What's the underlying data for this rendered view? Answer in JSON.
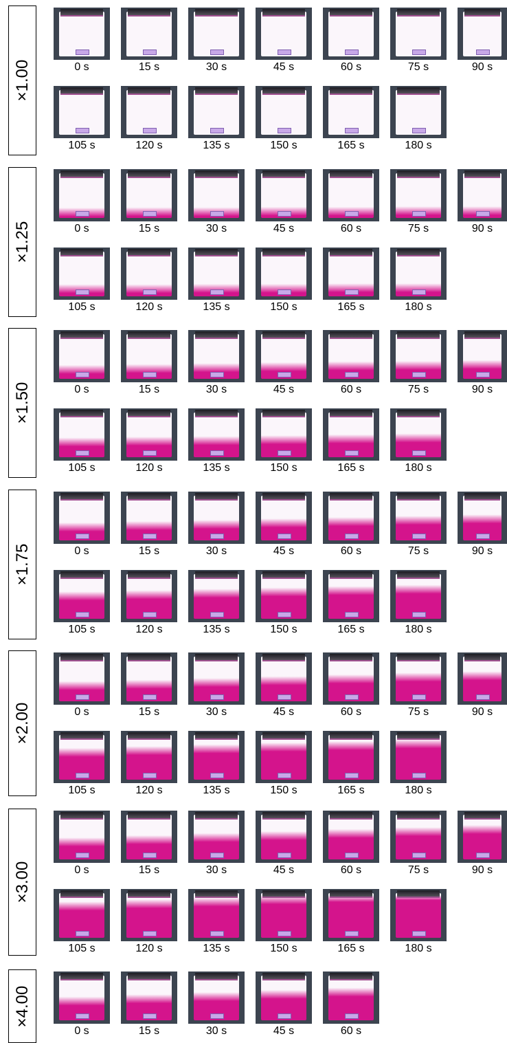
{
  "times": [
    "0 s",
    "15 s",
    "30 s",
    "45 s",
    "60 s",
    "75 s",
    "90 s",
    "105 s",
    "120 s",
    "135 s",
    "150 s",
    "165 s",
    "180 s"
  ],
  "groups": [
    {
      "label": "×1.00",
      "fill": 0.0,
      "frames": 13
    },
    {
      "label": "×1.25",
      "fill": 0.1,
      "frames": 13
    },
    {
      "label": "×1.50",
      "fill": 0.35,
      "frames": 13
    },
    {
      "label": "×1.75",
      "fill": 0.6,
      "frames": 13
    },
    {
      "label": "×2.00",
      "fill": 0.75,
      "frames": 13
    },
    {
      "label": "×3.00",
      "fill": 0.9,
      "frames": 13
    },
    {
      "label": "×4.00",
      "fill": 1.0,
      "frames": 5
    }
  ],
  "colors": {
    "bag_white": "#fbf6fb",
    "bag_magenta": "#d4148c",
    "background": "#3c4450"
  }
}
